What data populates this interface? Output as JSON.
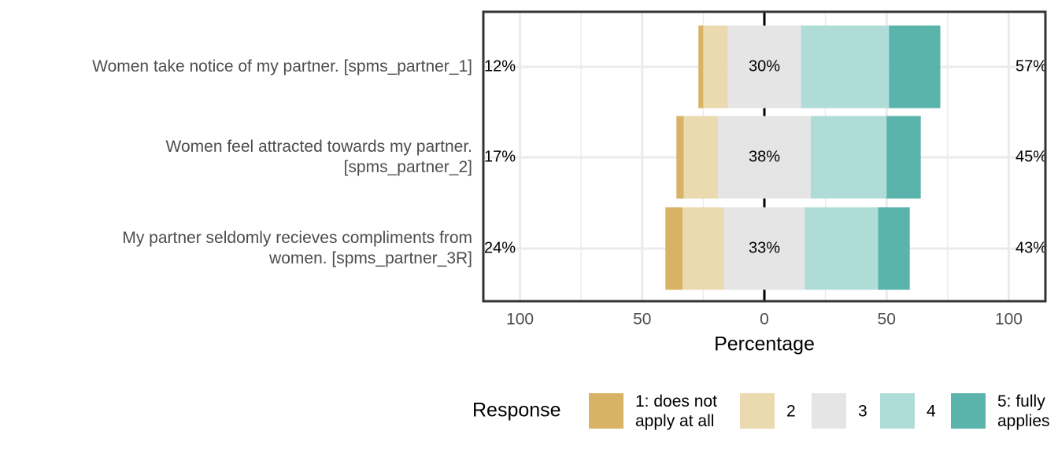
{
  "chart_data": {
    "type": "diverging_bar",
    "categories": [
      "Women take notice of my partner. [spms_partner_1]",
      "Women feel attracted towards my partner.\n[spms_partner_2]",
      "My partner seldomly recieves compliments from\nwomen. [spms_partner_3R]"
    ],
    "series": [
      {
        "name": "1: does not\napply at all",
        "color": "#d8b365",
        "values": [
          2,
          3,
          7
        ]
      },
      {
        "name": "2",
        "color": "#ebd9b0",
        "values": [
          10,
          14,
          17
        ]
      },
      {
        "name": "3",
        "color": "#e5e5e5",
        "values": [
          30,
          38,
          33
        ],
        "value_labels": [
          "30%",
          "38%",
          "33%"
        ]
      },
      {
        "name": "4",
        "color": "#b0dcd8",
        "values": [
          36,
          31,
          30
        ]
      },
      {
        "name": "5: fully\napplies",
        "color": "#5ab4ac",
        "values": [
          21,
          14,
          13
        ]
      }
    ],
    "low_totals": {
      "values": [
        12,
        17,
        24
      ],
      "value_labels": [
        "12%",
        "17%",
        "24%"
      ]
    },
    "high_totals": {
      "values": [
        57,
        45,
        43
      ],
      "value_labels": [
        "57%",
        "45%",
        "43%"
      ]
    },
    "xlabel": "Percentage",
    "legend_title": "Response",
    "xlim": [
      -115,
      115
    ],
    "xticks": [
      {
        "value": -100,
        "label": "100"
      },
      {
        "value": -50,
        "label": "50"
      },
      0,
      50,
      100
    ],
    "grid": true
  }
}
